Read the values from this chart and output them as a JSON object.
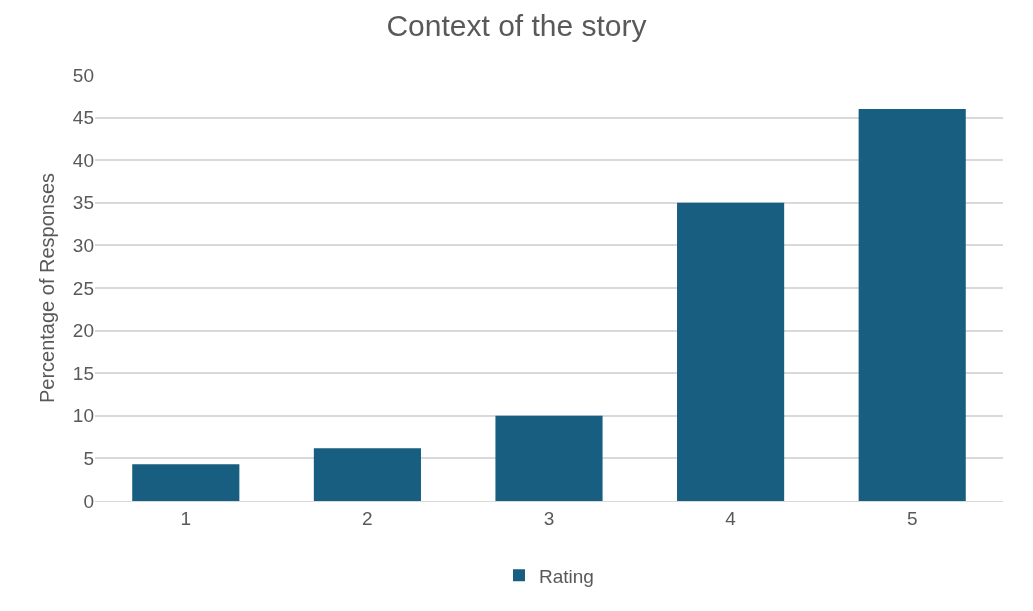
{
  "chart_data": {
    "type": "bar",
    "title": "Context of the story",
    "ylabel": "Percentage of Responses",
    "categories": [
      "1",
      "2",
      "3",
      "4",
      "5"
    ],
    "series": [
      {
        "name": "Rating",
        "color": "#175e80",
        "values": [
          4.3,
          6.2,
          10,
          35,
          46
        ]
      }
    ],
    "ylim": [
      0,
      50
    ],
    "yticks": [
      0,
      5,
      10,
      15,
      20,
      25,
      30,
      35,
      40,
      45,
      50
    ],
    "grid": "y",
    "legend": "bottom"
  }
}
